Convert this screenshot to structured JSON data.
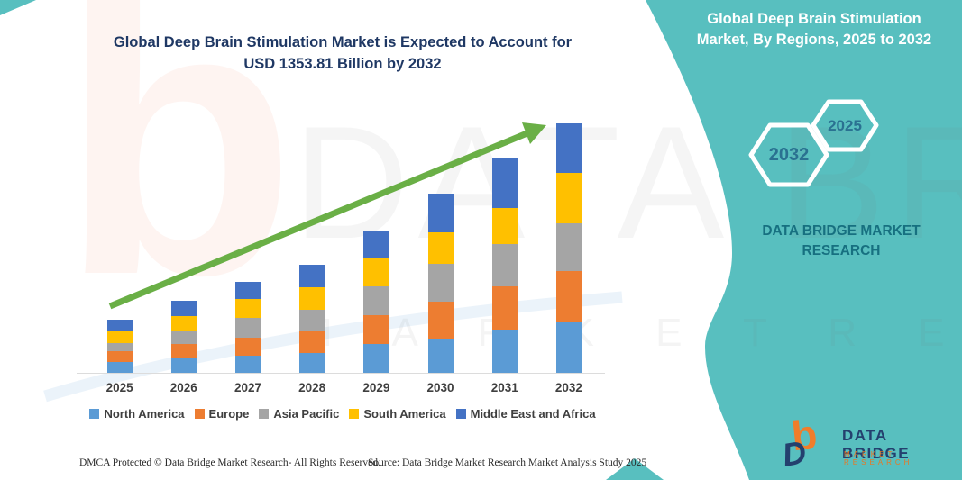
{
  "page": {
    "background": "#ffffff",
    "accent_teal": "#58bfbf",
    "title_navy": "#1f3864",
    "arrow_green": "#6aaf46"
  },
  "main_title": {
    "line1": "Global Deep Brain Stimulation Market is Expected to Account for",
    "line2": "USD 1353.81 Billion by 2032"
  },
  "right_panel": {
    "title_line1": "Global Deep Brain Stimulation",
    "title_line2": "Market, By Regions, 2025 to 2032",
    "hex_large_label": "2032",
    "hex_small_label": "2025",
    "brand_line1": "DATA BRIDGE MARKET",
    "brand_line2": "RESEARCH"
  },
  "watermark": {
    "b_glyph": "b",
    "big_text": "DATA BRIDGE",
    "small_text": "M A R K E T   R E S E A R C H"
  },
  "logo": {
    "b_glyph": "b",
    "d_glyph": "D",
    "name": "DATA BRIDGE",
    "tagline": "MARKET RESEARCH"
  },
  "footer": {
    "left": "DMCA Protected © Data Bridge Market Research-  All Rights Reserved.",
    "right": "Source: Data Bridge Market Research  Market Analysis Study 2025"
  },
  "chart_data": {
    "type": "bar",
    "stacked": true,
    "title": "Global Deep Brain Stimulation Market is Expected to Account for USD 1353.81 Billion by 2032",
    "categories": [
      "2025",
      "2026",
      "2027",
      "2028",
      "2029",
      "2030",
      "2031",
      "2032"
    ],
    "series": [
      {
        "name": "North America",
        "color": "#5B9BD5",
        "values": [
          12,
          16,
          19,
          22,
          32,
          38,
          48,
          56
        ]
      },
      {
        "name": "Europe",
        "color": "#ED7D31",
        "values": [
          12,
          16,
          20,
          25,
          32,
          41,
          48,
          57
        ]
      },
      {
        "name": "Asia Pacific",
        "color": "#A5A5A5",
        "values": [
          9,
          15,
          22,
          23,
          32,
          42,
          47,
          53
        ]
      },
      {
        "name": "South America",
        "color": "#FFC000",
        "values": [
          13,
          16,
          21,
          25,
          31,
          35,
          40,
          56
        ]
      },
      {
        "name": "Middle East and Africa",
        "color": "#4472C4",
        "values": [
          13,
          17,
          19,
          25,
          31,
          43,
          55,
          55
        ]
      }
    ],
    "xlabel": "",
    "ylabel": "",
    "value_units": "relative segment heights in pixels (chart displays no numeric y-axis)",
    "stated_total_2032": "USD 1353.81 Billion",
    "legend_position": "bottom",
    "grid": false,
    "trend_arrow": true
  }
}
